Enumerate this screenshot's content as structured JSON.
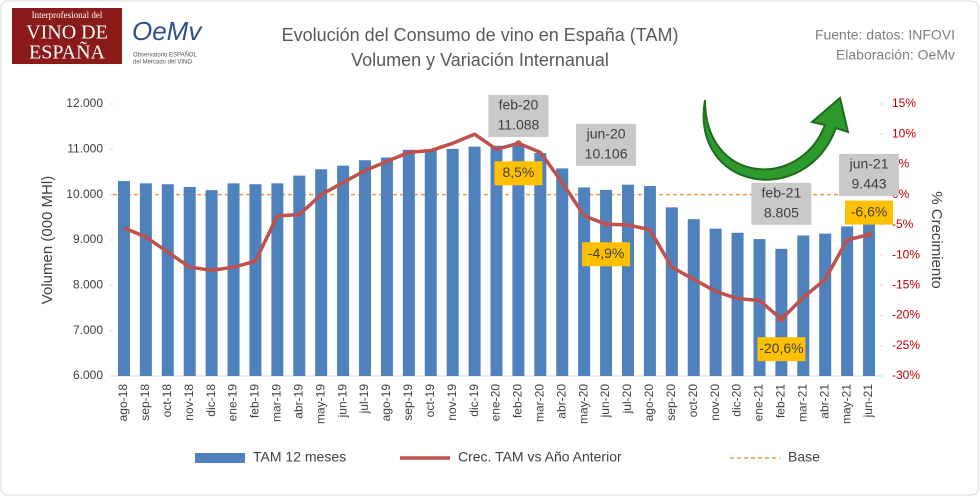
{
  "header": {
    "logo1": [
      "Interprofesional del",
      "VINO DE",
      "ESPAÑA"
    ],
    "logo2": {
      "name": "OeMv",
      "subtitle": [
        "Observatorio ESPAÑOL",
        "del Mercado del VINO"
      ]
    },
    "source": [
      "Fuente: datos: INFOVI",
      "Elaboración: OeMv"
    ]
  },
  "chart_data": {
    "type": "bar-line",
    "title": [
      "Evolución del Consumo de vino en España (TAM)",
      "Volumen y Variación Internanual"
    ],
    "y_label": "Volumen (000 MHl)",
    "y2_label": "% Crecimiento",
    "categories": [
      "ago-18",
      "sep-18",
      "oct-18",
      "nov-18",
      "dic-18",
      "ene-19",
      "feb-19",
      "mar-19",
      "abr-19",
      "may-19",
      "jun-19",
      "jul-19",
      "ago-19",
      "sep-19",
      "oct-19",
      "nov-19",
      "dic-19",
      "ene-20",
      "feb-20",
      "mar-20",
      "abr-20",
      "may-20",
      "jun-20",
      "jul-20",
      "ago-20",
      "sep-20",
      "oct-20",
      "nov-20",
      "dic-20",
      "ene-21",
      "feb-21",
      "mar-21",
      "abr-21",
      "may-21",
      "jun-21"
    ],
    "series": [
      {
        "name": "TAM 12 meses",
        "type": "bar",
        "color": "#4F81BD",
        "values": [
          10300,
          10250,
          10230,
          10170,
          10100,
          10250,
          10230,
          10250,
          10420,
          10560,
          10640,
          10760,
          10820,
          10990,
          11000,
          11010,
          11060,
          11080,
          11088,
          10920,
          10580,
          10160,
          10106,
          10220,
          10190,
          9720,
          9460,
          9250,
          9160,
          9020,
          8805,
          9100,
          9140,
          9300,
          9443
        ],
        "value_labels": [
          null,
          null,
          null,
          null,
          null,
          null,
          null,
          null,
          null,
          null,
          null,
          null,
          null,
          null,
          null,
          null,
          null,
          null,
          "11.088",
          null,
          null,
          null,
          "10.106",
          null,
          null,
          null,
          null,
          null,
          null,
          null,
          "8.805",
          null,
          null,
          null,
          "9.443"
        ]
      },
      {
        "name": "Crec. TAM vs Año Anterior",
        "type": "line",
        "axis": "y2",
        "color": "#C0504D",
        "values": [
          -5.5,
          -7,
          -9.5,
          -12,
          -12.5,
          -12,
          -11,
          -3.5,
          -3.3,
          0,
          2,
          4,
          5.5,
          7,
          7.3,
          8.5,
          10,
          7.5,
          8.5,
          7,
          2,
          -3.5,
          -4.9,
          -5,
          -5.8,
          -12,
          -14,
          -16,
          -17.2,
          -17.5,
          -20.6,
          -17,
          -14,
          -7.5,
          -6.6
        ],
        "value_labels": [
          null,
          null,
          null,
          null,
          null,
          null,
          null,
          null,
          null,
          null,
          null,
          null,
          null,
          null,
          null,
          null,
          null,
          null,
          "8,5%",
          null,
          null,
          null,
          "-4,9%",
          null,
          null,
          null,
          null,
          null,
          null,
          null,
          "-20,6%",
          null,
          null,
          null,
          "-6,6%"
        ]
      }
    ],
    "reference_line": {
      "name": "Base",
      "value": 0,
      "axis": "y2",
      "color": "#F79646"
    },
    "ylim": [
      6000,
      12000
    ],
    "yticks": [
      {
        "value": 6000,
        "label": "6.000"
      },
      {
        "value": 7000,
        "label": "7.000"
      },
      {
        "value": 8000,
        "label": "8.000"
      },
      {
        "value": 9000,
        "label": "9.000"
      },
      {
        "value": 10000,
        "label": "10.000"
      },
      {
        "value": 11000,
        "label": "11.000"
      },
      {
        "value": 12000,
        "label": "12.000"
      }
    ],
    "y2lim": [
      -30,
      15
    ],
    "y2ticks": [
      {
        "value": -30,
        "label": "-30%"
      },
      {
        "value": -25,
        "label": "-25%"
      },
      {
        "value": -20,
        "label": "-20%"
      },
      {
        "value": -15,
        "label": "-15%"
      },
      {
        "value": -10,
        "label": "-10%"
      },
      {
        "value": -5,
        "label": "-5%"
      },
      {
        "value": 0,
        "label": "0%"
      },
      {
        "value": 5,
        "label": "5%"
      },
      {
        "value": 10,
        "label": "10%"
      },
      {
        "value": 15,
        "label": "15%"
      }
    ],
    "legend": "bottom"
  }
}
